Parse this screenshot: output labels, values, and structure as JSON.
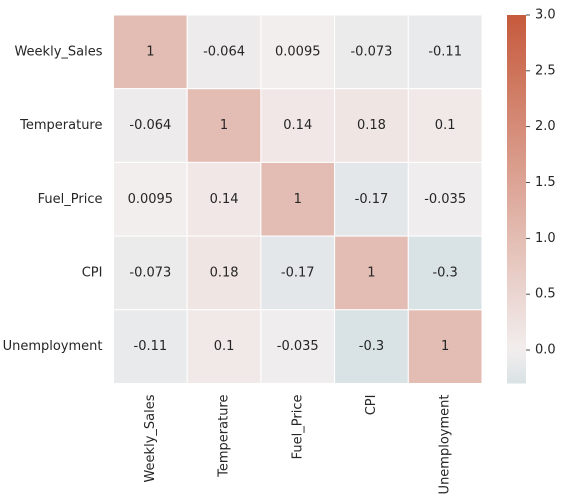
{
  "chart_data": {
    "type": "heatmap",
    "rows": [
      "Weekly_Sales",
      "Temperature",
      "Fuel_Price",
      "CPI",
      "Unemployment"
    ],
    "columns": [
      "Weekly_Sales",
      "Temperature",
      "Fuel_Price",
      "CPI",
      "Unemployment"
    ],
    "values": [
      [
        1,
        -0.064,
        0.0095,
        -0.073,
        -0.11
      ],
      [
        -0.064,
        1,
        0.14,
        0.18,
        0.1
      ],
      [
        0.0095,
        0.14,
        1,
        -0.17,
        -0.035
      ],
      [
        -0.073,
        0.18,
        -0.17,
        1,
        -0.3
      ],
      [
        -0.11,
        0.1,
        -0.035,
        -0.3,
        1
      ]
    ],
    "cell_labels": [
      [
        "1",
        "-0.064",
        "0.0095",
        "-0.073",
        "-0.11"
      ],
      [
        "-0.064",
        "1",
        "0.14",
        "0.18",
        "0.1"
      ],
      [
        "0.0095",
        "0.14",
        "1",
        "-0.17",
        "-0.035"
      ],
      [
        "-0.073",
        "0.18",
        "-0.17",
        "1",
        "-0.3"
      ],
      [
        "-0.11",
        "0.1",
        "-0.035",
        "-0.3",
        "1"
      ]
    ],
    "colorbar": {
      "range": [
        -0.3,
        3.0
      ],
      "ticks": [
        0.0,
        0.5,
        1.0,
        1.5,
        2.0,
        2.5,
        3.0
      ],
      "tick_labels": [
        "0.0",
        "0.5",
        "1.0",
        "1.5",
        "2.0",
        "2.5",
        "3.0"
      ],
      "color_low": "#d9e2e5",
      "color_mid": "#f2eeee",
      "color_high": "#c65a3c"
    },
    "title": "",
    "xlabel": "",
    "ylabel": "",
    "grid": false,
    "cell_border_color": "#ffffff",
    "legend": "colorbar-right"
  }
}
